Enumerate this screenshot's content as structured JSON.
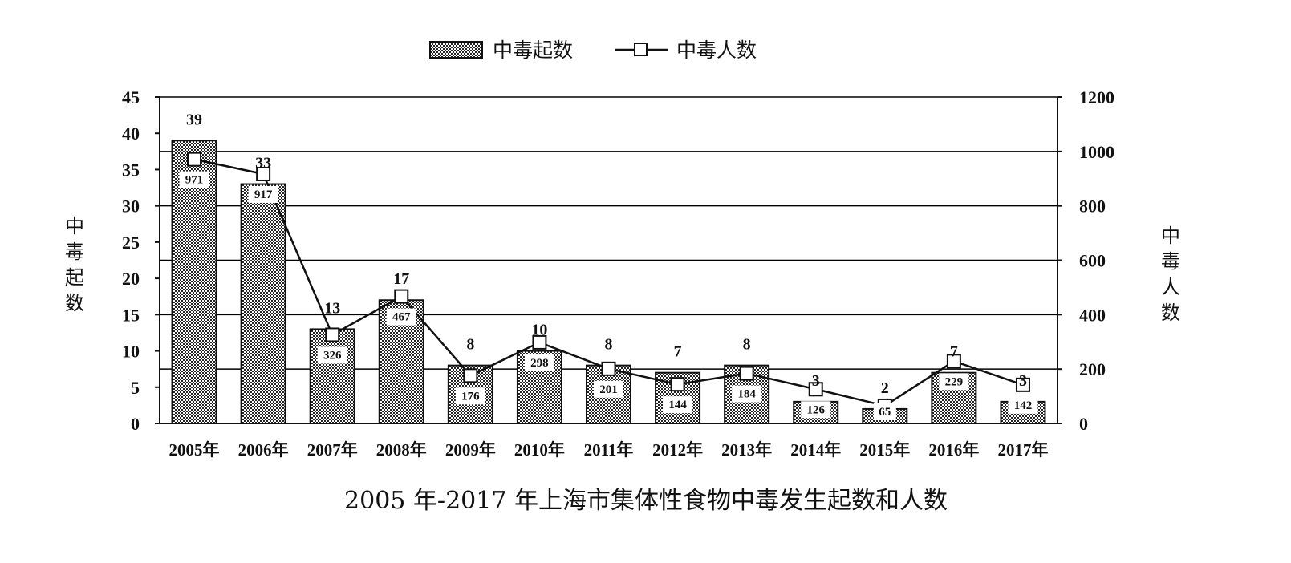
{
  "chart_data": {
    "type": "bar",
    "title": "2005 年-2017 年上海市集体性食物中毒发生起数和人数",
    "categories": [
      "2005年",
      "2006年",
      "2007年",
      "2008年",
      "2009年",
      "2010年",
      "2011年",
      "2012年",
      "2013年",
      "2014年",
      "2015年",
      "2016年",
      "2017年"
    ],
    "series": [
      {
        "name": "中毒起数",
        "type": "bar",
        "axis": "left",
        "values": [
          39,
          33,
          13,
          17,
          8,
          10,
          8,
          7,
          8,
          3,
          2,
          7,
          3
        ]
      },
      {
        "name": "中毒人数",
        "type": "line",
        "axis": "right",
        "marker": "square",
        "values": [
          971,
          917,
          326,
          467,
          176,
          298,
          201,
          144,
          184,
          126,
          65,
          229,
          142
        ]
      }
    ],
    "y_left": {
      "label": "中毒起数",
      "ylim": [
        0,
        45
      ],
      "ticks": [
        "0",
        "5",
        "10",
        "15",
        "20",
        "25",
        "30",
        "35",
        "40",
        "45"
      ]
    },
    "y_right": {
      "label": "中毒人数",
      "ylim": [
        0,
        1200
      ],
      "ticks": [
        "0",
        "200",
        "400",
        "600",
        "800",
        "1000",
        "1200"
      ]
    },
    "grid": "horizontal",
    "legend_position": "top-center",
    "colors": {
      "bar_fill": "#ffffff",
      "bar_pattern": "#222222",
      "line": "#111111",
      "marker_fill": "#ffffff",
      "grid": "#000000"
    }
  }
}
